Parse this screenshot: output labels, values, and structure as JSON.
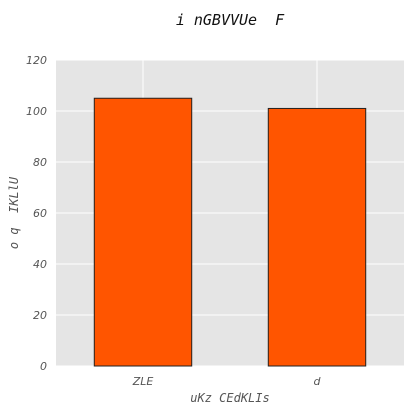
{
  "chart_data": {
    "type": "bar",
    "title": "i nGBVVUe  F",
    "xlabel": "uKz CEdKLIs",
    "ylabel": "o q  IKLlU",
    "categories": [
      "ZLE",
      "d"
    ],
    "values": [
      105,
      101
    ],
    "ylim": [
      0,
      120
    ],
    "yticks": [
      0,
      20,
      40,
      60,
      80,
      100,
      120
    ],
    "grid": true,
    "colors": {
      "bar": "#ff5500",
      "bar_edge": "#222222",
      "plot_bg": "#e5e5e5",
      "grid": "#ffffff"
    }
  }
}
